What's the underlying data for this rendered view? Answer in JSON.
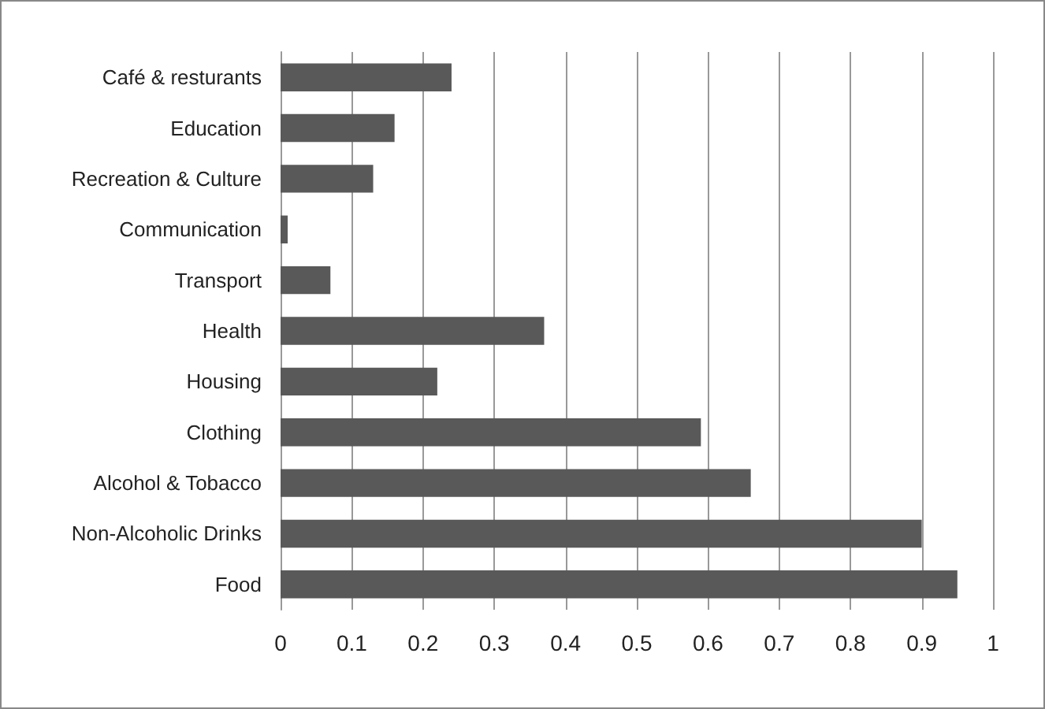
{
  "chart_data": {
    "type": "bar",
    "orientation": "horizontal",
    "categories": [
      "Café & resturants",
      "Education",
      "Recreation & Culture",
      "Communication",
      "Transport",
      "Health",
      "Housing",
      "Clothing",
      "Alcohol & Tobacco",
      "Non-Alcoholic Drinks",
      "Food"
    ],
    "values": [
      0.24,
      0.16,
      0.13,
      0.01,
      0.07,
      0.37,
      0.22,
      0.59,
      0.66,
      0.9,
      0.95
    ],
    "color": "#595959",
    "xlim": [
      0,
      1
    ],
    "xticks": [
      0,
      0.1,
      0.2,
      0.3,
      0.4,
      0.5,
      0.6,
      0.7,
      0.8,
      0.9,
      1
    ],
    "grid": "x"
  }
}
